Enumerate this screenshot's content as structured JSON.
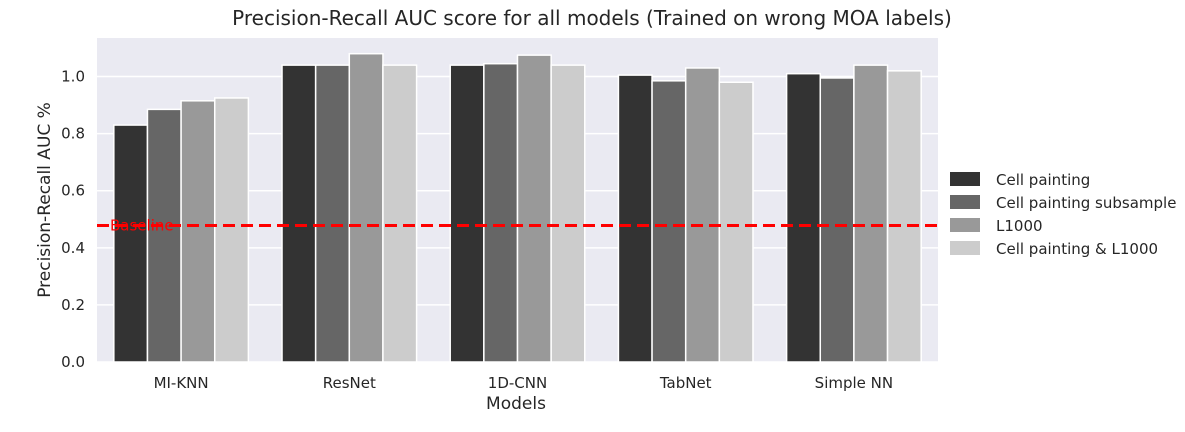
{
  "chart_data": {
    "type": "bar",
    "title": "Precision-Recall AUC score for all models (Trained on wrong MOA labels)",
    "xlabel": "Models",
    "ylabel": "Precision-Recall AUC %",
    "categories": [
      "MI-KNN",
      "ResNet",
      "1D-CNN",
      "TabNet",
      "Simple NN"
    ],
    "series": [
      {
        "name": "Cell painting",
        "color": "#333333",
        "values": [
          0.83,
          1.04,
          1.04,
          1.005,
          1.01
        ]
      },
      {
        "name": "Cell painting subsample",
        "color": "#666666",
        "values": [
          0.885,
          1.04,
          1.045,
          0.985,
          0.995
        ]
      },
      {
        "name": "L1000",
        "color": "#999999",
        "values": [
          0.915,
          1.08,
          1.075,
          1.03,
          1.04
        ]
      },
      {
        "name": "Cell painting & L1000",
        "color": "#cccccc",
        "values": [
          0.925,
          1.04,
          1.04,
          0.98,
          1.02
        ]
      }
    ],
    "ylim": [
      0,
      1.135
    ],
    "yticks": [
      0.0,
      0.2,
      0.4,
      0.6,
      0.8,
      1.0
    ],
    "ytick_labels": [
      "0.0",
      "0.2",
      "0.4",
      "0.6",
      "0.8",
      "1.0"
    ],
    "grid": true,
    "legend_position": "right",
    "baseline": {
      "label": "Baseline",
      "value": 0.478,
      "color": "#ff0000"
    },
    "background_color": "#eaeaf2"
  }
}
